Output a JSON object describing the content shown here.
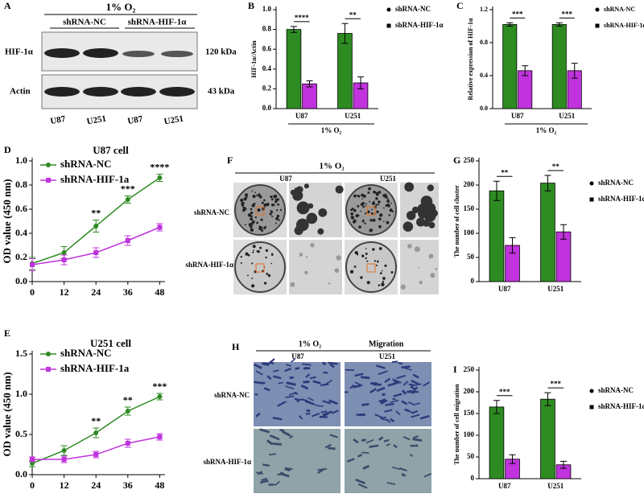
{
  "blot": {
    "panel": "A",
    "title": "1% O₂",
    "groups": [
      "shRNA-NC",
      "shRNA-HIF-1α"
    ],
    "rows": [
      "HIF-1α",
      "Actin"
    ],
    "sizes": [
      "120 kDa",
      "43 kDa"
    ],
    "lanes": [
      "U87",
      "U251",
      "U87",
      "U251"
    ]
  },
  "colony": {
    "panel": "F",
    "title": "1% O₂",
    "columns": [
      "U87",
      "U251"
    ],
    "rows": [
      "shRNA-NC",
      "shRNA-HIF-1α"
    ]
  },
  "migration": {
    "panel": "H",
    "condition": "1% O₂",
    "assay": "Migration",
    "columns": [
      "U87",
      "U251"
    ],
    "rows": [
      "shRNA-NC",
      "shRNA-HIF-1α"
    ]
  },
  "chart_data": [
    {
      "type": "bar",
      "panel": "B",
      "ylabel": "HIF-1α/Actin",
      "xlabel": "1% O₂",
      "categories": [
        "U87",
        "U251"
      ],
      "series": [
        {
          "name": "shRNA-NC",
          "color": "#2e8b22",
          "marker": "circle",
          "values": [
            0.8,
            0.76
          ],
          "errors": [
            0.03,
            0.1
          ]
        },
        {
          "name": "shRNA-HIF-1α",
          "color": "#c033dd",
          "marker": "square",
          "values": [
            0.25,
            0.26
          ],
          "errors": [
            0.03,
            0.06
          ]
        }
      ],
      "significance": [
        "****",
        "**"
      ],
      "ylim": [
        0,
        1
      ],
      "yticks": [
        {
          "value": 0,
          "label": "0.0"
        },
        0.2,
        0.4,
        0.6,
        0.8,
        {
          "value": 1,
          "label": "1.0"
        }
      ]
    },
    {
      "type": "bar",
      "panel": "C",
      "ylabel": "Relative expression of HIF-1α",
      "xlabel": "1% O₂",
      "categories": [
        "U87",
        "U251"
      ],
      "series": [
        {
          "name": "shRNA-NC",
          "color": "#2e8b22",
          "marker": "circle",
          "values": [
            1.02,
            1.02
          ],
          "errors": [
            0.02,
            0.02
          ]
        },
        {
          "name": "shRNA-HIF-1α",
          "color": "#c033dd",
          "marker": "square",
          "values": [
            0.46,
            0.46
          ],
          "errors": [
            0.06,
            0.09
          ]
        }
      ],
      "significance": [
        "***",
        "***"
      ],
      "ylim": [
        0,
        1.2
      ],
      "yticks": [
        {
          "value": 0,
          "label": "0.0"
        },
        0.4,
        0.8,
        1.2
      ]
    },
    {
      "type": "line",
      "panel": "D",
      "title": "U87 cell",
      "ylabel": "OD value (450 nm)",
      "x": [
        0,
        12,
        24,
        36,
        48
      ],
      "xlim": [
        0,
        50
      ],
      "xticks": [
        0,
        12,
        24,
        36,
        48
      ],
      "series": [
        {
          "name": "shRNA-NC",
          "color": "#2e8b22",
          "marker": "circle",
          "values": [
            0.15,
            0.24,
            0.46,
            0.68,
            0.86
          ],
          "errors": [
            0.05,
            0.05,
            0.05,
            0.03,
            0.03
          ]
        },
        {
          "name": "shRNA-HIF-1a",
          "color": "#c033dd",
          "marker": "square",
          "values": [
            0.14,
            0.18,
            0.24,
            0.34,
            0.45
          ],
          "errors": [
            0.05,
            0.04,
            0.04,
            0.04,
            0.03
          ]
        }
      ],
      "annotations": [
        {
          "x": 24,
          "text": "**"
        },
        {
          "x": 36,
          "text": "***"
        },
        {
          "x": 48,
          "text": "****"
        }
      ],
      "ylim": [
        0,
        1
      ],
      "yticks": [
        {
          "value": 0,
          "label": "0.0"
        },
        0.2,
        0.4,
        0.6,
        0.8,
        {
          "value": 1,
          "label": "1.0"
        }
      ]
    },
    {
      "type": "line",
      "panel": "E",
      "title": "U251 cell",
      "ylabel": "OD value (450 nm)",
      "x": [
        0,
        12,
        24,
        36,
        48
      ],
      "xlim": [
        0,
        50
      ],
      "xticks": [
        0,
        12,
        24,
        36,
        48
      ],
      "series": [
        {
          "name": "shRNA-NC",
          "color": "#2e8b22",
          "marker": "circle",
          "values": [
            0.14,
            0.3,
            0.52,
            0.79,
            0.97
          ],
          "errors": [
            0.04,
            0.06,
            0.06,
            0.05,
            0.04
          ]
        },
        {
          "name": "shRNA-HIF-1a",
          "color": "#c033dd",
          "marker": "square",
          "values": [
            0.19,
            0.19,
            0.25,
            0.39,
            0.47
          ],
          "errors": [
            0.03,
            0.04,
            0.04,
            0.05,
            0.04
          ]
        }
      ],
      "annotations": [
        {
          "x": 24,
          "text": "**"
        },
        {
          "x": 36,
          "text": "**"
        },
        {
          "x": 48,
          "text": "***"
        }
      ],
      "ylim": [
        0,
        1.5
      ],
      "yticks": [
        {
          "value": 0,
          "label": "0.0"
        },
        0.5,
        {
          "value": 1,
          "label": "1.0"
        },
        1.5
      ]
    },
    {
      "type": "bar",
      "panel": "G",
      "ylabel": "The number of cell cluster",
      "categories": [
        "U87",
        "U251"
      ],
      "series": [
        {
          "name": "shRNA-NC",
          "color": "#2e8b22",
          "marker": "circle",
          "values": [
            188,
            204
          ],
          "errors": [
            20,
            16
          ]
        },
        {
          "name": "shRNA-HIF-1α",
          "color": "#c033dd",
          "marker": "square",
          "values": [
            75,
            103
          ],
          "errors": [
            16,
            15
          ]
        }
      ],
      "significance": [
        "**",
        "**"
      ],
      "ylim": [
        0,
        250
      ],
      "yticks": [
        0,
        50,
        100,
        150,
        200,
        250
      ]
    },
    {
      "type": "bar",
      "panel": "I",
      "ylabel": "The number of cell migration",
      "categories": [
        "U87",
        "U251"
      ],
      "series": [
        {
          "name": "shRNA-NC",
          "color": "#2e8b22",
          "marker": "circle",
          "values": [
            165,
            183
          ],
          "errors": [
            15,
            15
          ]
        },
        {
          "name": "shRNA-HIF-1α",
          "color": "#c033dd",
          "marker": "square",
          "values": [
            45,
            32
          ],
          "errors": [
            10,
            8
          ]
        }
      ],
      "significance": [
        "***",
        "***"
      ],
      "ylim": [
        0,
        250
      ],
      "yticks": [
        0,
        50,
        100,
        150,
        200,
        250
      ]
    }
  ]
}
